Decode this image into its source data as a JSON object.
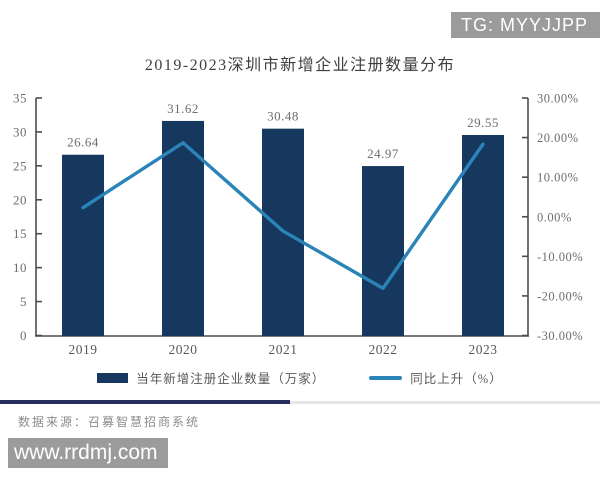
{
  "badges": {
    "tg": "TG: MYYJJPP",
    "site": "www.rrdmj.com"
  },
  "chart_data": {
    "type": "bar+line combo",
    "title": "2019-2023深圳市新增企业注册数量分布",
    "categories": [
      "2019",
      "2020",
      "2021",
      "2022",
      "2023"
    ],
    "series": [
      {
        "name": "当年新增注册企业数量（万家）",
        "type": "bar",
        "axis": "left",
        "color": "#16375e",
        "values": [
          26.64,
          31.62,
          30.48,
          24.97,
          29.55
        ],
        "value_labels": [
          "26.64",
          "31.62",
          "30.48",
          "24.97",
          "29.55"
        ]
      },
      {
        "name": "同比上升（%）",
        "type": "line",
        "axis": "right",
        "color": "#2b84b8",
        "values": [
          2.3,
          18.69,
          -3.61,
          -18.08,
          18.34
        ]
      }
    ],
    "axes": {
      "left": {
        "min": 0,
        "max": 35,
        "step": 5,
        "tick_labels": [
          "35",
          "30",
          "25",
          "20",
          "15",
          "10",
          "5",
          "0"
        ]
      },
      "right": {
        "min": -30,
        "max": 30,
        "step": 10,
        "tick_labels": [
          "30.00%",
          "20.00%",
          "10.00%",
          "0.00%",
          "-10.00%",
          "-20.00%",
          "-30.00%"
        ]
      }
    },
    "grid": false,
    "legend_position": "bottom"
  },
  "footer": {
    "source": "数据来源：召募智慧招商系统"
  }
}
